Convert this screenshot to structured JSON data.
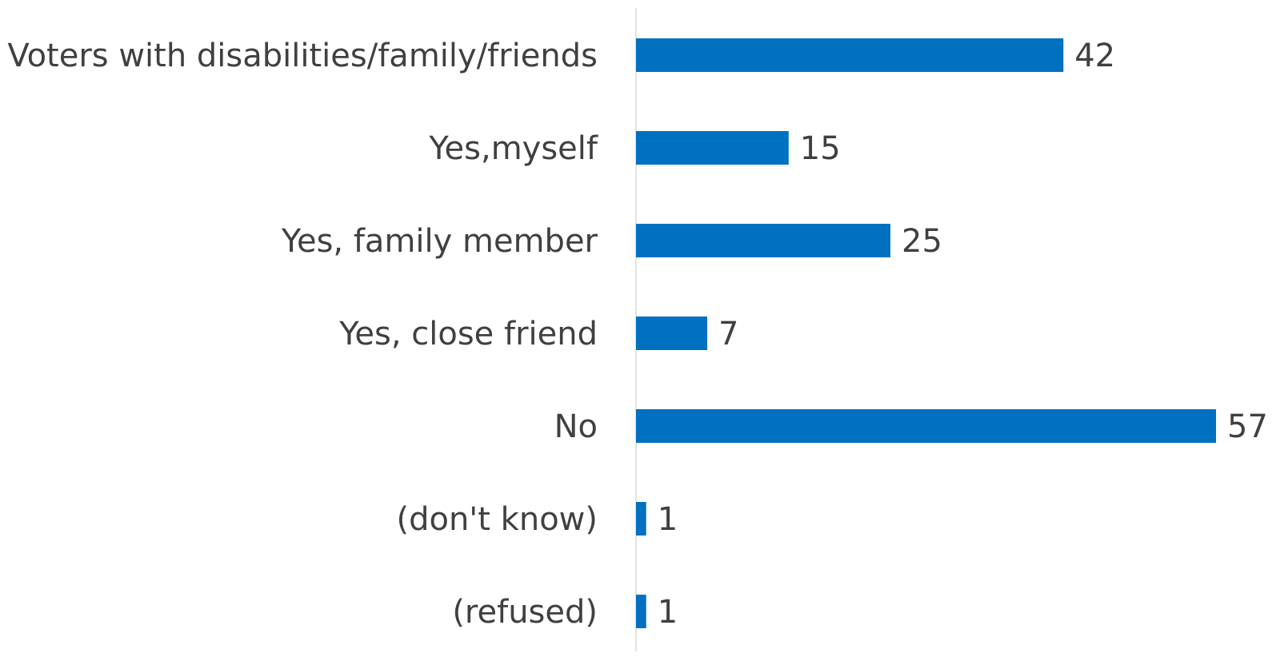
{
  "chart_data": {
    "type": "bar",
    "orientation": "horizontal",
    "categories": [
      "Voters with disabilities/family/friends",
      "Yes,myself",
      "Yes, family member",
      "Yes, close friend",
      "No",
      "(don't know)",
      "(refused)"
    ],
    "values": [
      42,
      15,
      25,
      7,
      57,
      1,
      1
    ],
    "data_labels": [
      "42",
      "15",
      "25",
      "7",
      "57",
      "1",
      "1"
    ],
    "xlim": [
      0,
      57
    ],
    "bar_color": "#0070C0",
    "axis_color": "#D9D9D9",
    "text_color": "#404040",
    "grid": false,
    "legend": "none"
  }
}
